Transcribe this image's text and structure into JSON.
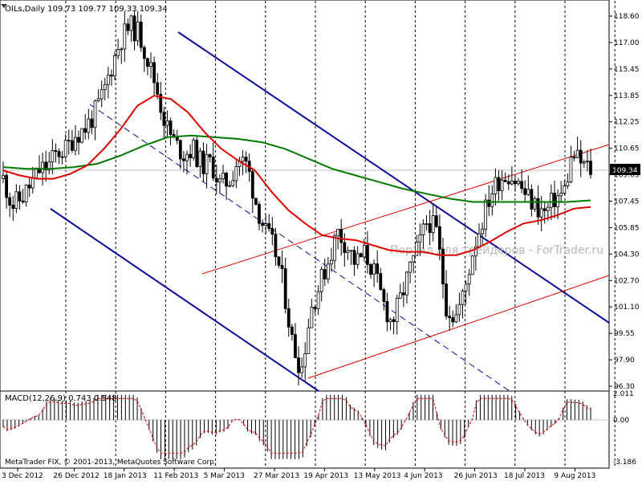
{
  "chart_data": [
    {
      "type": "candlestick",
      "title": "OILs,Daily  109.73 109.77 109.33 109.34",
      "current_price_label": "109.34",
      "y_ticks": [
        "118.60",
        "117.00",
        "115.45",
        "113.85",
        "112.25",
        "110.65",
        "109.05",
        "107.45",
        "105.85",
        "104.30",
        "102.70",
        "101.10",
        "99.55",
        "97.90",
        "96.30"
      ],
      "ylim": [
        96.3,
        118.6
      ],
      "x_ticks": [
        "3 Dec 2012",
        "26 Dec 2012",
        "18 Jan 2013",
        "11 Feb 2013",
        "5 Mar 2013",
        "27 Mar 2013",
        "19 Apr 2013",
        "13 May 2013",
        "4 Jun 2013",
        "26 Jun 2013",
        "18 Jul 2013",
        "9 Aug 2013"
      ],
      "close_path": [
        108.8,
        107.2,
        107.6,
        108.4,
        109.3,
        109.6,
        110.4,
        110.6,
        111.5,
        111.8,
        112.6,
        113.8,
        115.6,
        117.2,
        118.0,
        117.6,
        116.0,
        114.2,
        112.0,
        110.9,
        110.3,
        110.6,
        109.6,
        109.8,
        108.4,
        108.7,
        110.0,
        109.6,
        107.3,
        105.6,
        104.6,
        102.4,
        98.9,
        97.3,
        100.9,
        102.4,
        103.9,
        105.6,
        104.8,
        103.7,
        104.3,
        103.2,
        101.4,
        100.1,
        101.6,
        103.3,
        104.8,
        106.4,
        105.5,
        101.2,
        100.4,
        101.9,
        104.6,
        106.3,
        108.0,
        108.9,
        109.1,
        108.5,
        107.7,
        107.1,
        106.7,
        107.6,
        107.9,
        110.3,
        109.7,
        109.34
      ],
      "indicators": [
        {
          "name": "MA fast",
          "color": "#e00000",
          "values": [
            109.3,
            109.0,
            108.8,
            108.8,
            109.1,
            109.6,
            110.6,
            111.8,
            113.2,
            113.8,
            113.6,
            112.8,
            111.6,
            110.6,
            109.9,
            109.3,
            108.0,
            106.9,
            106.1,
            105.4,
            105.2,
            105.1,
            104.8,
            104.5,
            104.4,
            104.4,
            104.2,
            104.2,
            104.5,
            105.0,
            105.6,
            106.1,
            106.3,
            106.6,
            107.0,
            107.1
          ]
        },
        {
          "name": "MA slow",
          "color": "#007a00",
          "values": [
            109.5,
            109.4,
            109.4,
            109.5,
            109.7,
            110.2,
            110.8,
            111.3,
            111.4,
            111.3,
            111.2,
            111.0,
            110.6,
            110.0,
            109.4,
            109.0,
            108.6,
            108.2,
            107.9,
            107.6,
            107.4,
            107.4,
            107.4,
            107.4,
            107.4,
            107.5
          ]
        }
      ]
    },
    {
      "type": "histogram",
      "title": "MACD(12,26,9) 0.743 0.548",
      "y_ticks": [
        "2.011",
        "0.00",
        "-3.186"
      ],
      "ylim": [
        -3.186,
        2.011
      ]
    }
  ],
  "watermark": "Портал для трейдеров - ForTrader.ru",
  "copyright": "MetaTrader FIX, © 2001-2013, MetaQuotes Software Corp."
}
